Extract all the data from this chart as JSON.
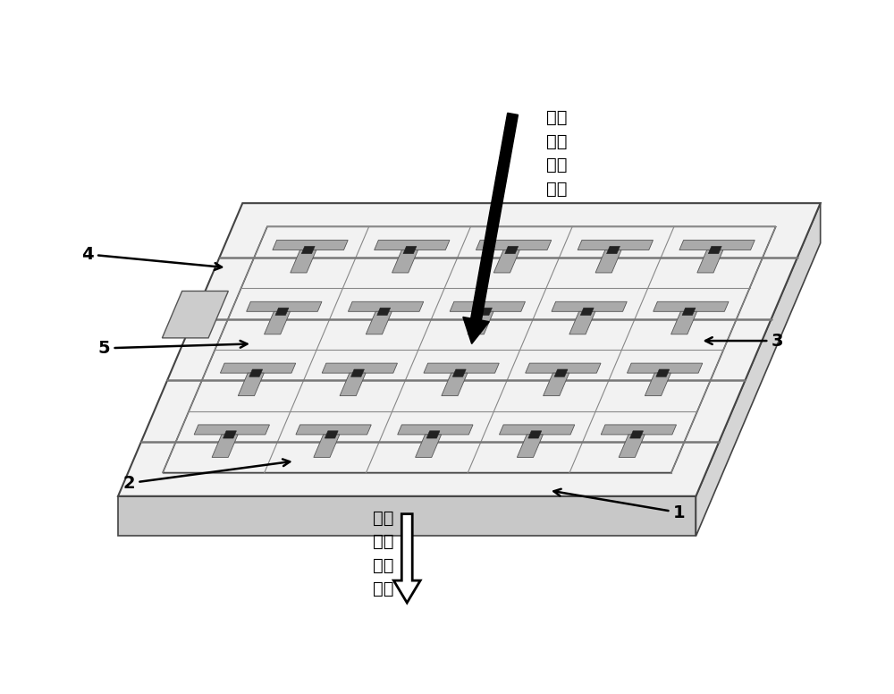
{
  "background_color": "#ffffff",
  "figsize": [
    10.0,
    7.76
  ],
  "dpi": 100,
  "top_text": "空间\n传播\n太赫\n兹波",
  "bottom_text": "被调\n制的\n太赫\n兹波",
  "label1": "1",
  "label2": "2",
  "label3": "3",
  "label4": "4",
  "label5": "5",
  "slab_color_top": "#f2f2f2",
  "slab_color_right": "#d5d5d5",
  "slab_color_bottom": "#c8c8c8",
  "slab_edge_color": "#444444",
  "grid_color": "#888888",
  "t_shape_color": "#aaaaaa",
  "t_edge_color": "#555555",
  "gate_color": "#222222",
  "line_color": "#777777"
}
